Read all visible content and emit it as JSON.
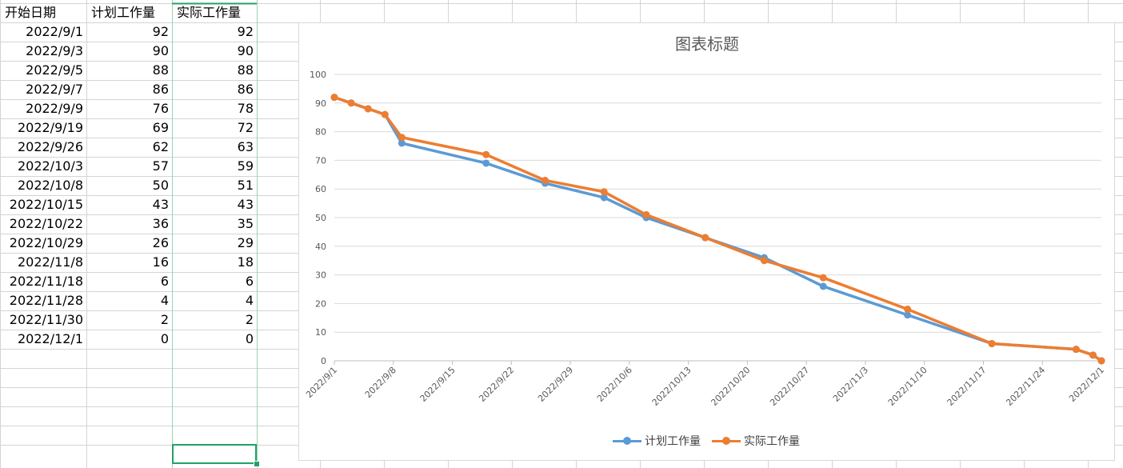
{
  "table": {
    "headers": [
      "开始日期",
      "计划工作量",
      "实际工作量"
    ],
    "rows": [
      [
        "2022/9/1",
        "92",
        "92"
      ],
      [
        "2022/9/3",
        "90",
        "90"
      ],
      [
        "2022/9/5",
        "88",
        "88"
      ],
      [
        "2022/9/7",
        "86",
        "86"
      ],
      [
        "2022/9/9",
        "76",
        "78"
      ],
      [
        "2022/9/19",
        "69",
        "72"
      ],
      [
        "2022/9/26",
        "62",
        "63"
      ],
      [
        "2022/10/3",
        "57",
        "59"
      ],
      [
        "2022/10/8",
        "50",
        "51"
      ],
      [
        "2022/10/15",
        "43",
        "43"
      ],
      [
        "2022/10/22",
        "36",
        "35"
      ],
      [
        "2022/10/29",
        "26",
        "29"
      ],
      [
        "2022/11/8",
        "16",
        "18"
      ],
      [
        "2022/11/18",
        "6",
        "6"
      ],
      [
        "2022/11/28",
        "4",
        "4"
      ],
      [
        "2022/11/30",
        "2",
        "2"
      ],
      [
        "2022/12/1",
        "0",
        "0"
      ]
    ]
  },
  "colors": {
    "series_planned": "#5b9bd5",
    "series_actual": "#ed7d31",
    "gridline": "#d9d9d9",
    "sheet_gridline": "#d4d4d4",
    "selection": "#21a366"
  },
  "chart_data": {
    "type": "line",
    "title": "图表标题",
    "x": [
      "2022/9/1",
      "2022/9/3",
      "2022/9/5",
      "2022/9/7",
      "2022/9/9",
      "2022/9/19",
      "2022/9/26",
      "2022/10/3",
      "2022/10/8",
      "2022/10/15",
      "2022/10/22",
      "2022/10/29",
      "2022/11/8",
      "2022/11/18",
      "2022/11/28",
      "2022/11/30",
      "2022/12/1"
    ],
    "series": [
      {
        "name": "计划工作量",
        "values": [
          92,
          90,
          88,
          86,
          76,
          69,
          62,
          57,
          50,
          43,
          36,
          26,
          16,
          6,
          4,
          2,
          0
        ]
      },
      {
        "name": "实际工作量",
        "values": [
          92,
          90,
          88,
          86,
          78,
          72,
          63,
          59,
          51,
          43,
          35,
          29,
          18,
          6,
          4,
          2,
          0
        ]
      }
    ],
    "ylim": [
      0,
      100
    ],
    "yticks": [
      "0",
      "10",
      "20",
      "30",
      "40",
      "50",
      "60",
      "70",
      "80",
      "90",
      "100"
    ],
    "xticks": [
      "2022/9/1",
      "2022/9/8",
      "2022/9/15",
      "2022/9/22",
      "2022/9/29",
      "2022/10/6",
      "2022/10/13",
      "2022/10/20",
      "2022/10/27",
      "2022/11/3",
      "2022/11/10",
      "2022/11/17",
      "2022/11/24",
      "2022/12/1"
    ],
    "x_axis": "date",
    "grid": true,
    "legend": "bottom"
  }
}
